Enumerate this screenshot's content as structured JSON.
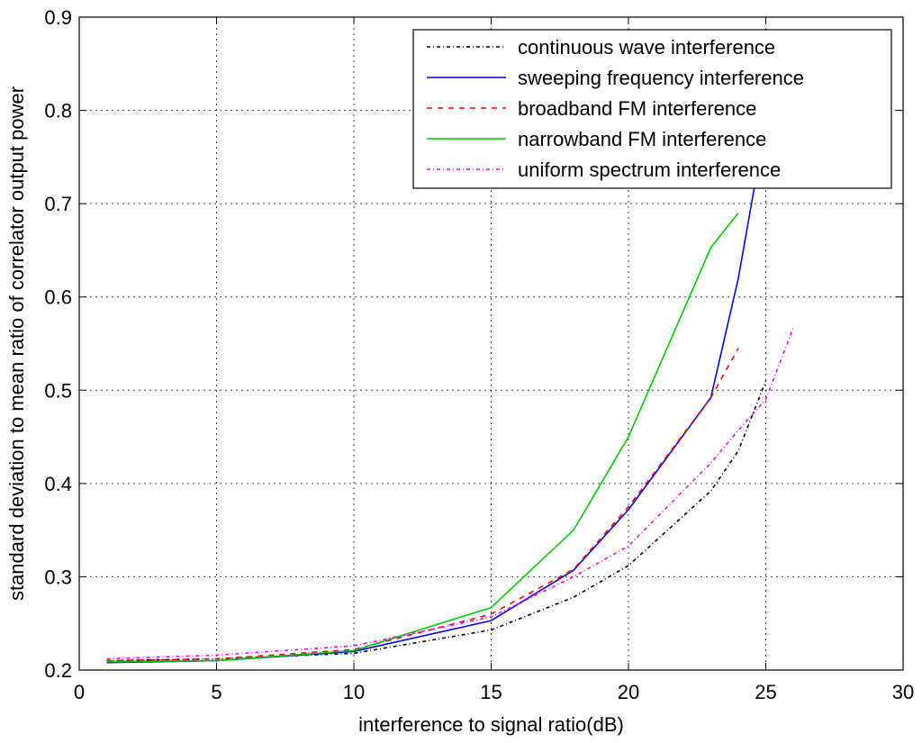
{
  "chart_data": {
    "type": "line",
    "xlabel": "interference to signal ratio(dB)",
    "ylabel": "standard deviation to mean ratio of correlator output power",
    "xlim": [
      0,
      30
    ],
    "ylim": [
      0.2,
      0.9
    ],
    "xticks": [
      0,
      5,
      10,
      15,
      20,
      25,
      30
    ],
    "yticks": [
      0.2,
      0.3,
      0.4,
      0.5,
      0.6,
      0.7,
      0.8,
      0.9
    ],
    "grid": true,
    "legend_position": "top-right",
    "series": [
      {
        "name": "continuous wave interference",
        "color": "#000000",
        "style": "dashdot",
        "x": [
          1,
          5,
          10,
          15,
          18,
          20,
          23,
          24,
          25
        ],
        "y": [
          0.21,
          0.212,
          0.218,
          0.243,
          0.278,
          0.312,
          0.392,
          0.435,
          0.51
        ]
      },
      {
        "name": "sweeping frequency interference",
        "color": "#0000ff",
        "style": "solid",
        "x": [
          1,
          5,
          10,
          15,
          18,
          20,
          23,
          24,
          24.6
        ],
        "y": [
          0.208,
          0.21,
          0.22,
          0.253,
          0.307,
          0.372,
          0.492,
          0.62,
          0.72
        ]
      },
      {
        "name": "broadband FM interference",
        "color": "#ff0000",
        "style": "dashed",
        "x": [
          1,
          5,
          10,
          15,
          18,
          20,
          23,
          24
        ],
        "y": [
          0.21,
          0.212,
          0.222,
          0.26,
          0.308,
          0.375,
          0.492,
          0.545
        ]
      },
      {
        "name": "narrowband FM interference",
        "color": "#00cc00",
        "style": "solid",
        "x": [
          1,
          5,
          10,
          15,
          18,
          20,
          23,
          24
        ],
        "y": [
          0.209,
          0.21,
          0.221,
          0.267,
          0.35,
          0.45,
          0.653,
          0.69
        ]
      },
      {
        "name": "uniform spectrum interference",
        "color": "#ff00ff",
        "style": "dashdot",
        "x": [
          1,
          5,
          10,
          15,
          18,
          20,
          23,
          24,
          25,
          26
        ],
        "y": [
          0.212,
          0.216,
          0.226,
          0.257,
          0.3,
          0.333,
          0.422,
          0.457,
          0.49,
          0.567
        ]
      }
    ]
  }
}
